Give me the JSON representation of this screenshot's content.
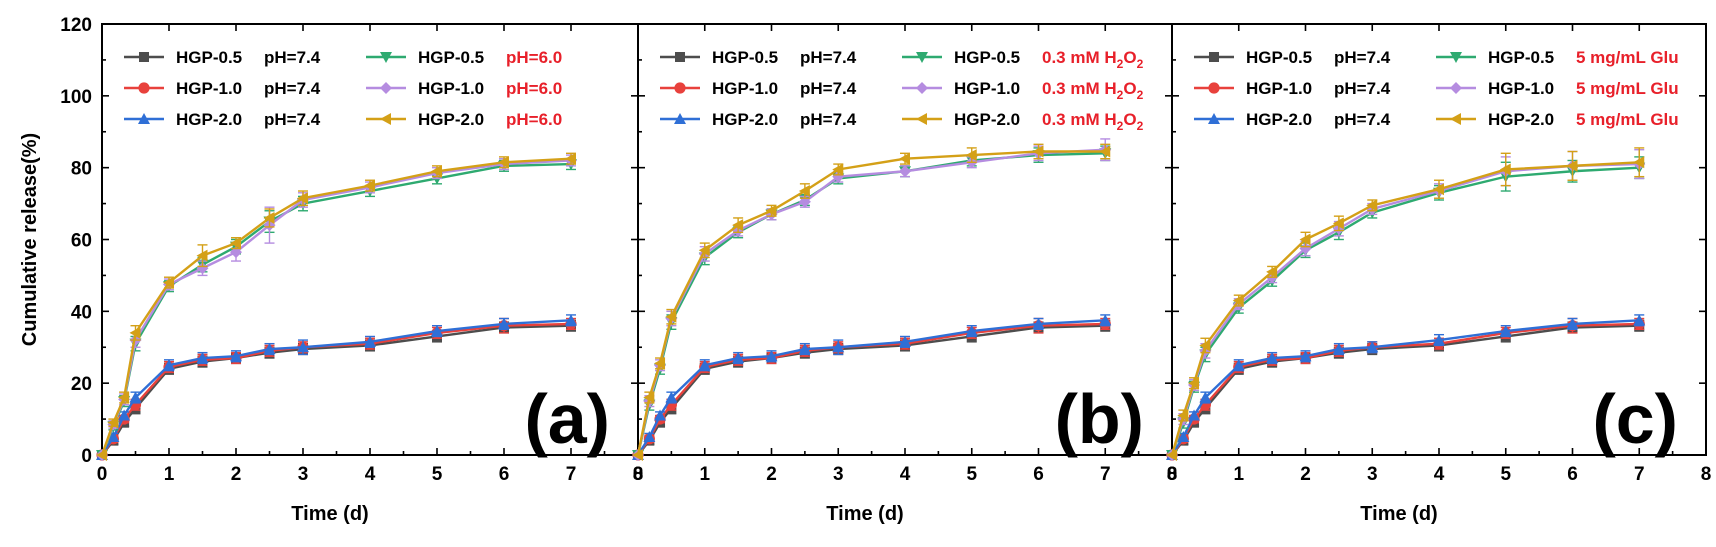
{
  "colors": {
    "HGP-0.5 control": "#4d4d4d",
    "HGP-1.0 control": "#e8413c",
    "HGP-2.0 control": "#2f6fd6",
    "HGP-0.5 stimulus": "#2eaa70",
    "HGP-1.0 stimulus": "#b58ce0",
    "HGP-2.0 stimulus": "#d4a017",
    "condition_label": "#e8202a"
  },
  "chart_data": [
    {
      "type": "line",
      "panel_label": "(a)",
      "xlabel": "Time (d)",
      "ylabel": "Cumulative release(%)",
      "xlim": [
        0,
        8
      ],
      "ylim": [
        0,
        120
      ],
      "x_ticks": [
        "0",
        "1",
        "2",
        "3",
        "4",
        "5",
        "6",
        "7",
        "8"
      ],
      "y_ticks": [
        "0",
        "20",
        "40",
        "60",
        "80",
        "100",
        "120"
      ],
      "legend_position": "top",
      "x": [
        0,
        0.17,
        0.33,
        0.5,
        1,
        1.5,
        2,
        2.5,
        3,
        4,
        5,
        6,
        7
      ],
      "series": [
        {
          "name": "HGP-0.5",
          "condition": "pH=7.4",
          "marker": "square",
          "color_key": "HGP-0.5 control",
          "values": [
            0,
            4,
            9,
            13,
            24,
            26,
            27,
            28.5,
            29.5,
            30.5,
            33,
            35.5,
            36
          ],
          "error": [
            0,
            1,
            1,
            1.5,
            1.5,
            1.5,
            1.5,
            1.5,
            1.5,
            1.5,
            1.5,
            1.5,
            1.5
          ]
        },
        {
          "name": "HGP-1.0",
          "condition": "pH=7.4",
          "marker": "circle",
          "color_key": "HGP-1.0 control",
          "values": [
            0,
            4.5,
            10,
            14,
            24.5,
            26.5,
            27,
            29,
            30,
            31,
            34,
            36,
            36.5
          ],
          "error": [
            0,
            1,
            1,
            1.5,
            1.5,
            1.5,
            1.5,
            1.5,
            1.5,
            1.5,
            1.5,
            2,
            1.5
          ]
        },
        {
          "name": "HGP-2.0",
          "condition": "pH=7.4",
          "marker": "triangle",
          "color_key": "HGP-2.0 control",
          "values": [
            0,
            5,
            11,
            16,
            25,
            27,
            27.5,
            29.5,
            30,
            31.5,
            34.5,
            36.5,
            37.5
          ],
          "error": [
            0,
            1,
            1,
            1.5,
            1.5,
            1.5,
            1.5,
            1.5,
            2,
            1.5,
            1.5,
            1.5,
            1.5
          ]
        },
        {
          "name": "HGP-0.5",
          "condition": "pH=6.0",
          "marker": "triangle-down",
          "color_key": "HGP-0.5 stimulus",
          "values": [
            0,
            8,
            15,
            31,
            47,
            53,
            58,
            65,
            70,
            73.5,
            77,
            80.5,
            81
          ],
          "error": [
            0,
            1,
            1.5,
            2,
            1.5,
            2,
            2,
            3,
            2,
            1.5,
            1.5,
            1.5,
            1.5
          ]
        },
        {
          "name": "HGP-1.0",
          "condition": "pH=6.0",
          "marker": "diamond",
          "color_key": "HGP-1.0 stimulus",
          "values": [
            0,
            8.5,
            15.5,
            32,
            47.5,
            52,
            56.5,
            64,
            71,
            74.5,
            78.5,
            81,
            82
          ],
          "error": [
            0,
            1,
            1.5,
            2,
            1.5,
            2,
            2.5,
            5,
            2,
            1.5,
            1.5,
            1.5,
            1.5
          ]
        },
        {
          "name": "HGP-2.0",
          "condition": "pH=6.0",
          "marker": "triangle-left",
          "color_key": "HGP-2.0 stimulus",
          "values": [
            0,
            9,
            16,
            34,
            48,
            55.5,
            59,
            66,
            71.5,
            75,
            79,
            81.5,
            82.5
          ],
          "error": [
            0,
            1,
            1.5,
            2,
            1.5,
            3,
            1.5,
            2.5,
            2,
            1.5,
            1.5,
            1.5,
            1.5
          ]
        }
      ]
    },
    {
      "type": "line",
      "panel_label": "(b)",
      "xlabel": "Time (d)",
      "ylabel": "",
      "xlim": [
        0,
        8
      ],
      "ylim": [
        0,
        120
      ],
      "x_ticks": [
        "0",
        "1",
        "2",
        "3",
        "4",
        "5",
        "6",
        "7",
        "8"
      ],
      "y_ticks": [],
      "legend_position": "top",
      "x": [
        0,
        0.17,
        0.33,
        0.5,
        1,
        1.5,
        2,
        2.5,
        3,
        4,
        5,
        6,
        7
      ],
      "series": [
        {
          "name": "HGP-0.5",
          "condition": "pH=7.4",
          "marker": "square",
          "color_key": "HGP-0.5 control",
          "values": [
            0,
            4,
            9,
            13,
            24,
            26,
            27,
            28.5,
            29.5,
            30.5,
            33,
            35.5,
            36
          ],
          "error": [
            0,
            1,
            1,
            1.5,
            1.5,
            1.5,
            1.5,
            1.5,
            1.5,
            1.5,
            1.5,
            1.5,
            1.5
          ]
        },
        {
          "name": "HGP-1.0",
          "condition": "pH=7.4",
          "marker": "circle",
          "color_key": "HGP-1.0 control",
          "values": [
            0,
            4.5,
            10,
            14,
            24.5,
            26.5,
            27,
            29,
            30,
            31,
            34,
            36,
            36.5
          ],
          "error": [
            0,
            1,
            1,
            1.5,
            1.5,
            1.5,
            1.5,
            1.5,
            1.5,
            1.5,
            1.5,
            2,
            1.5
          ]
        },
        {
          "name": "HGP-2.0",
          "condition": "pH=7.4",
          "marker": "triangle",
          "color_key": "HGP-2.0 control",
          "values": [
            0,
            5,
            11,
            16,
            25,
            27,
            27.5,
            29.5,
            30,
            31.5,
            34.5,
            36.5,
            37.5
          ],
          "error": [
            0,
            1,
            1,
            1.5,
            1.5,
            1.5,
            1.5,
            1.5,
            2,
            1.5,
            1.5,
            1.5,
            1.5
          ]
        },
        {
          "name": "HGP-0.5",
          "condition": "0.3 mM H2O2",
          "marker": "triangle-down",
          "color_key": "HGP-0.5 stimulus",
          "values": [
            0,
            14,
            24,
            37,
            55,
            62,
            67,
            71,
            77,
            79,
            82,
            83.5,
            84
          ],
          "error": [
            0,
            1.5,
            1.5,
            2,
            2,
            1.5,
            1.5,
            1.5,
            1.5,
            1.5,
            1.5,
            2,
            2
          ]
        },
        {
          "name": "HGP-1.0",
          "condition": "0.3 mM H2O2",
          "marker": "diamond",
          "color_key": "HGP-1.0 stimulus",
          "values": [
            0,
            15,
            25,
            38,
            56,
            62.5,
            67,
            70.5,
            77.5,
            79,
            81.5,
            84,
            85
          ],
          "error": [
            0,
            1.5,
            1.5,
            2,
            2,
            1.5,
            1.5,
            1.5,
            1.5,
            1.5,
            1.5,
            2,
            3
          ]
        },
        {
          "name": "HGP-2.0",
          "condition": "0.3 mM H2O2",
          "marker": "triangle-left",
          "color_key": "HGP-2.0 stimulus",
          "values": [
            0,
            16,
            25.5,
            38.5,
            57,
            64,
            68,
            73.5,
            79.5,
            82.5,
            83.5,
            84.5,
            84.5
          ],
          "error": [
            0,
            1.5,
            1.5,
            2,
            2,
            2,
            1.5,
            2,
            1.5,
            1.5,
            2,
            2,
            2
          ]
        }
      ]
    },
    {
      "type": "line",
      "panel_label": "(c)",
      "xlabel": "Time (d)",
      "ylabel": "",
      "xlim": [
        0,
        8
      ],
      "ylim": [
        0,
        120
      ],
      "x_ticks": [
        "0",
        "1",
        "2",
        "3",
        "4",
        "5",
        "6",
        "7",
        "8"
      ],
      "y_ticks": [],
      "legend_position": "top",
      "x": [
        0,
        0.17,
        0.33,
        0.5,
        1,
        1.5,
        2,
        2.5,
        3,
        4,
        5,
        6,
        7
      ],
      "series": [
        {
          "name": "HGP-0.5",
          "condition": "pH=7.4",
          "marker": "square",
          "color_key": "HGP-0.5 control",
          "values": [
            0,
            4,
            9,
            13,
            24,
            26,
            27,
            28.5,
            29.5,
            30.5,
            33,
            35.5,
            36
          ],
          "error": [
            0,
            1,
            1,
            1.5,
            1.5,
            1.5,
            1.5,
            1.5,
            1.5,
            1.5,
            1.5,
            1.5,
            1.5
          ]
        },
        {
          "name": "HGP-1.0",
          "condition": "pH=7.4",
          "marker": "circle",
          "color_key": "HGP-1.0 control",
          "values": [
            0,
            4.5,
            10,
            14,
            24.5,
            26.5,
            27,
            29,
            30,
            31,
            34,
            36,
            36.5
          ],
          "error": [
            0,
            1,
            1,
            1.5,
            1.5,
            1.5,
            1.5,
            1.5,
            1.5,
            1.5,
            1.5,
            2,
            1.5
          ]
        },
        {
          "name": "HGP-2.0",
          "condition": "pH=7.4",
          "marker": "triangle",
          "color_key": "HGP-2.0 control",
          "values": [
            0,
            5,
            11,
            16,
            25,
            27,
            27.5,
            29.5,
            30,
            32,
            34.5,
            36.5,
            37.5
          ],
          "error": [
            0,
            1,
            1,
            1.5,
            1.5,
            1.5,
            1.5,
            1.5,
            1.5,
            1.5,
            1.5,
            1.5,
            1.5
          ]
        },
        {
          "name": "HGP-0.5",
          "condition": "5 mg/mL Glu",
          "marker": "triangle-down",
          "color_key": "HGP-0.5 stimulus",
          "values": [
            0,
            9,
            19,
            28,
            41,
            48.5,
            57,
            62,
            67.5,
            73,
            77.5,
            79,
            80
          ],
          "error": [
            0,
            1.5,
            1.5,
            2,
            1.5,
            1.5,
            2,
            2,
            1.5,
            2,
            4,
            3,
            3
          ]
        },
        {
          "name": "HGP-1.0",
          "condition": "5 mg/mL Glu",
          "marker": "diamond",
          "color_key": "HGP-1.0 stimulus",
          "values": [
            0,
            10,
            19.5,
            29,
            42,
            49.5,
            57.5,
            63,
            68.5,
            73.5,
            79,
            80.5,
            81
          ],
          "error": [
            0,
            1.5,
            1.5,
            2,
            1.5,
            1.5,
            2,
            2,
            1.5,
            2,
            4,
            4,
            4
          ]
        },
        {
          "name": "HGP-2.0",
          "condition": "5 mg/mL Glu",
          "marker": "triangle-left",
          "color_key": "HGP-2.0 stimulus",
          "values": [
            0,
            11,
            20,
            30.5,
            43,
            51,
            60,
            64.5,
            69.5,
            74,
            79.5,
            80.5,
            81.5
          ],
          "error": [
            0,
            1.5,
            1.5,
            2,
            1.5,
            1.5,
            2,
            2,
            1.5,
            2.5,
            4.5,
            4,
            4
          ]
        }
      ]
    }
  ]
}
